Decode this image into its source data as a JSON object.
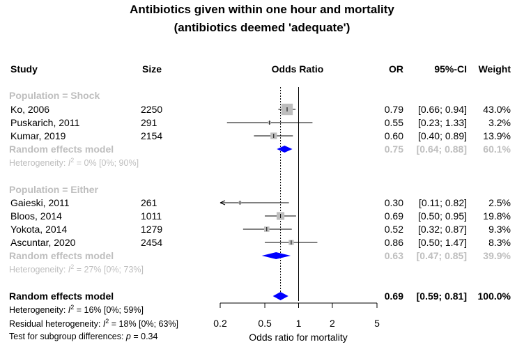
{
  "title_line1": "Antibiotics given within one hour and mortality",
  "title_line2": "(antibiotics deemed 'adequate')",
  "columns": {
    "study": "Study",
    "size": "Size",
    "odds_ratio": "Odds Ratio",
    "or": "OR",
    "ci": "95%-CI",
    "weight": "Weight"
  },
  "colors": {
    "box": "#bebebe",
    "diamond": "#0000ff",
    "subgroup_text": "#bebebe"
  },
  "chart_data": {
    "type": "forest",
    "x_scale": "log",
    "xlabel": "Odds ratio for mortality",
    "x_ticks": [
      0.2,
      0.5,
      1,
      2,
      5
    ],
    "x_tick_labels": [
      "0.2",
      "0.5",
      "1",
      "2",
      "5"
    ],
    "xlim": [
      0.2,
      5
    ],
    "reference_line": 1,
    "pooled_line": 0.69,
    "groups": [
      {
        "label": "Population = Shock",
        "studies": [
          {
            "study": "Ko, 2006",
            "size": "2250",
            "or": 0.79,
            "lo": 0.66,
            "hi": 0.94,
            "or_text": "0.79",
            "ci_text": "[0.66; 0.94]",
            "weight_text": "43.0%",
            "weight": 43.0
          },
          {
            "study": "Puskarich, 2011",
            "size": "291",
            "or": 0.55,
            "lo": 0.23,
            "hi": 1.33,
            "or_text": "0.55",
            "ci_text": "[0.23; 1.33]",
            "weight_text": "3.2%",
            "weight": 3.2
          },
          {
            "study": "Kumar, 2019",
            "size": "2154",
            "or": 0.6,
            "lo": 0.4,
            "hi": 0.89,
            "or_text": "0.60",
            "ci_text": "[0.40; 0.89]",
            "weight_text": "13.9%",
            "weight": 13.9
          }
        ],
        "model": {
          "label": "Random effects model",
          "or": 0.75,
          "lo": 0.64,
          "hi": 0.88,
          "or_text": "0.75",
          "ci_text": "[0.64; 0.88]",
          "weight_text": "60.1%"
        },
        "heterogeneity": {
          "prefix": "Heterogeneity: ",
          "i": "I",
          "exp": "2",
          "rest": " = 0% [0%; 90%]"
        }
      },
      {
        "label": "Population = Either",
        "studies": [
          {
            "study": "Gaieski, 2011",
            "size": "261",
            "or": 0.3,
            "lo": 0.11,
            "hi": 0.82,
            "or_text": "0.30",
            "ci_text": "[0.11; 0.82]",
            "weight_text": "2.5%",
            "weight": 2.5,
            "arrow_left": true
          },
          {
            "study": "Bloos, 2014",
            "size": "1011",
            "or": 0.69,
            "lo": 0.5,
            "hi": 0.95,
            "or_text": "0.69",
            "ci_text": "[0.50; 0.95]",
            "weight_text": "19.8%",
            "weight": 19.8
          },
          {
            "study": "Yokota, 2014",
            "size": "1279",
            "or": 0.52,
            "lo": 0.32,
            "hi": 0.87,
            "or_text": "0.52",
            "ci_text": "[0.32; 0.87]",
            "weight_text": "9.3%",
            "weight": 9.3
          },
          {
            "study": "Ascuntar, 2020",
            "size": "2454",
            "or": 0.86,
            "lo": 0.5,
            "hi": 1.47,
            "or_text": "0.86",
            "ci_text": "[0.50; 1.47]",
            "weight_text": "8.3%",
            "weight": 8.3
          }
        ],
        "model": {
          "label": "Random effects model",
          "or": 0.63,
          "lo": 0.47,
          "hi": 0.85,
          "or_text": "0.63",
          "ci_text": "[0.47; 0.85]",
          "weight_text": "39.9%"
        },
        "heterogeneity": {
          "prefix": "Heterogeneity: ",
          "i": "I",
          "exp": "2",
          "rest": " = 27% [0%; 73%]"
        }
      }
    ],
    "overall": {
      "label": "Random effects model",
      "or": 0.69,
      "lo": 0.59,
      "hi": 0.81,
      "or_text": "0.69",
      "ci_text": "[0.59; 0.81]",
      "weight_text": "100.0%"
    },
    "overall_heterogeneity": {
      "prefix": "Heterogeneity: ",
      "i": "I",
      "exp": "2",
      "rest": " = 16% [0%; 59%]"
    },
    "residual_heterogeneity": {
      "prefix": "Residual heterogeneity: ",
      "i": "I",
      "exp": "2",
      "rest": " = 18% [0%; 63%]"
    },
    "subgroup_test": {
      "prefix": "Test for subgroup differences:  ",
      "p": "p",
      "rest": " = 0.34"
    }
  }
}
